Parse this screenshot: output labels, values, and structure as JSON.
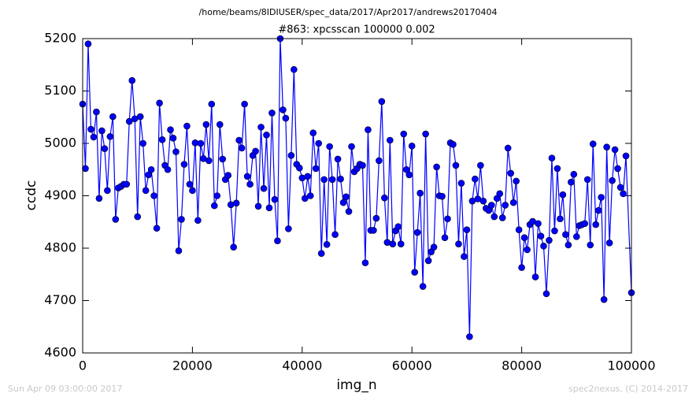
{
  "chart_data": {
    "type": "line",
    "suptitle": "/home/beams/8IDIUSER/spec_data/2017/Apr2017/andrews20170404",
    "title": "#863: xpcsscan 100000 0.002",
    "xlabel": "img_n",
    "ylabel": "ccdc",
    "footer_left": "Sun Apr 09 03:00:00 2017",
    "footer_right": "spec2nexus, (C) 2014-2017",
    "xlim": [
      0,
      100000
    ],
    "xticks": [
      0,
      20000,
      40000,
      60000,
      80000,
      100000
    ],
    "ylim": [
      4600,
      5200
    ],
    "yticks": [
      4600,
      4700,
      4800,
      4900,
      5000,
      5100,
      5200
    ],
    "x": [
      0,
      500,
      1000,
      1500,
      2000,
      2500,
      3000,
      3500,
      4000,
      4500,
      5000,
      5500,
      6000,
      6500,
      7000,
      7500,
      8000,
      8500,
      9000,
      9500,
      10000,
      10500,
      11000,
      11500,
      12000,
      12500,
      13000,
      13500,
      14000,
      14500,
      15000,
      15500,
      16000,
      16500,
      17000,
      17500,
      18000,
      18500,
      19000,
      19500,
      20000,
      20500,
      21000,
      21500,
      22000,
      22500,
      23000,
      23500,
      24000,
      24500,
      25000,
      25500,
      26000,
      26500,
      27000,
      27500,
      28000,
      28500,
      29000,
      29500,
      30000,
      30500,
      31000,
      31500,
      32000,
      32500,
      33000,
      33500,
      34000,
      34500,
      35000,
      35500,
      36000,
      36500,
      37000,
      37500,
      38000,
      38500,
      39000,
      39500,
      40000,
      40500,
      41000,
      41500,
      42000,
      42500,
      43000,
      43500,
      44000,
      44500,
      45000,
      45500,
      46000,
      46500,
      47000,
      47500,
      48000,
      48500,
      49000,
      49500,
      50000,
      50500,
      51000,
      51500,
      52000,
      52500,
      53000,
      53500,
      54000,
      54500,
      55000,
      55500,
      56000,
      56500,
      57000,
      57500,
      58000,
      58500,
      59000,
      59500,
      60000,
      60500,
      61000,
      61500,
      62000,
      62500,
      63000,
      63500,
      64000,
      64500,
      65000,
      65500,
      66000,
      66500,
      67000,
      67500,
      68000,
      68500,
      69000,
      69500,
      70000,
      70500,
      71000,
      71500,
      72000,
      72500,
      73000,
      73500,
      74000,
      74500,
      75000,
      75500,
      76000,
      76500,
      77000,
      77500,
      78000,
      78500,
      79000,
      79500,
      80000,
      80500,
      81000,
      81500,
      82000,
      82500,
      83000,
      83500,
      84000,
      84500,
      85000,
      85500,
      86000,
      86500,
      87000,
      87500,
      88000,
      88500,
      89000,
      89500,
      90000,
      90500,
      91000,
      91500,
      92000,
      92500,
      93000,
      93500,
      94000,
      94500,
      95000,
      95500,
      96000,
      96500,
      97000,
      97500,
      98000,
      98500,
      99000,
      100000
    ],
    "series": [
      {
        "color": "#0000ff",
        "values": [
          5075,
          4952,
          5190,
          5027,
          5012,
          5060,
          4895,
          5024,
          4990,
          4910,
          5013,
          5051,
          4855,
          4915,
          4918,
          4922,
          4922,
          5042,
          5120,
          5047,
          4860,
          5051,
          5000,
          4910,
          4940,
          4950,
          4900,
          4838,
          5077,
          5007,
          4958,
          4950,
          5026,
          5010,
          4984,
          4795,
          4855,
          4960,
          5033,
          4922,
          4910,
          5001,
          4853,
          5000,
          4971,
          5036,
          4967,
          5075,
          4881,
          4900,
          5036,
          4970,
          4931,
          4939,
          4883,
          4802,
          4886,
          5006,
          4991,
          5075,
          4937,
          4922,
          4977,
          4985,
          4880,
          5031,
          4914,
          5016,
          4877,
          5058,
          4893,
          4814,
          5200,
          5064,
          5048,
          4837,
          4977,
          5141,
          4960,
          4953,
          4934,
          4895,
          4937,
          4900,
          5020,
          4952,
          5000,
          4790,
          4931,
          4807,
          4994,
          4931,
          4826,
          4970,
          4932,
          4887,
          4898,
          4870,
          4994,
          4946,
          4952,
          4960,
          4958,
          4772,
          5026,
          4834,
          4834,
          4857,
          4967,
          5080,
          4896,
          4811,
          5006,
          4808,
          4833,
          4841,
          4808,
          5018,
          4950,
          4940,
          4995,
          4754,
          4830,
          4905,
          4727,
          5018,
          4776,
          4793,
          4802,
          4955,
          4900,
          4899,
          4820,
          4856,
          5001,
          4998,
          4958,
          4808,
          4924,
          4784,
          4835,
          4631,
          4890,
          4932,
          4894,
          4958,
          4890,
          4876,
          4872,
          4882,
          4860,
          4895,
          4904,
          4858,
          4882,
          4991,
          4943,
          4887,
          4928,
          4835,
          4763,
          4820,
          4797,
          4845,
          4851,
          4745,
          4847,
          4823,
          4804,
          4713,
          4815,
          4972,
          4833,
          4952,
          4856,
          4902,
          4826,
          4806,
          4926,
          4941,
          4822,
          4843,
          4845,
          4847,
          4931,
          4806,
          4999,
          4845,
          4872,
          4897,
          4702,
          4993,
          4810,
          4929,
          4988,
          4952,
          4916,
          4904,
          4976,
          4715
        ]
      }
    ]
  }
}
